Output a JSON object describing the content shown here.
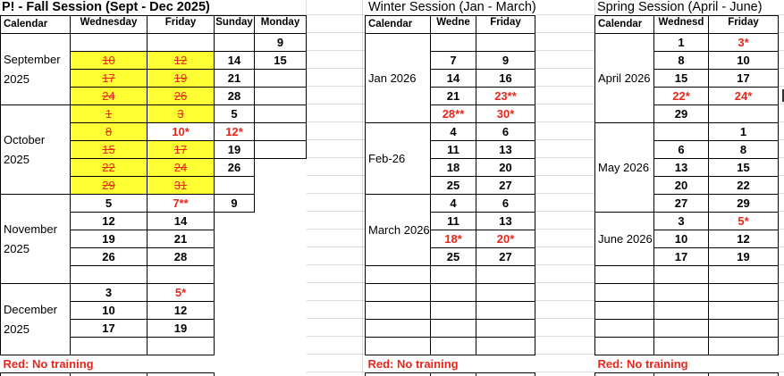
{
  "sections": [
    {
      "id": "fall",
      "title": "P! - Fall Session (Sept - Dec 2025)",
      "headers": [
        "Calendar",
        "Wednesday",
        "Friday",
        "Sunday",
        "Monday"
      ],
      "months": [
        {
          "label": "September 2025",
          "rows": 4
        },
        {
          "label": "October 2025",
          "rows": 5
        },
        {
          "label": "November 2025",
          "rows": 5
        },
        {
          "label": "December 2025",
          "rows": 4
        }
      ],
      "rows": [
        [
          "",
          "",
          "",
          "9"
        ],
        [
          {
            "v": "10",
            "s": "cancelled"
          },
          {
            "v": "12",
            "s": "cancelled"
          },
          "14",
          "15"
        ],
        [
          {
            "v": "17",
            "s": "cancelled"
          },
          {
            "v": "19",
            "s": "cancelled"
          },
          "21",
          ""
        ],
        [
          {
            "v": "24",
            "s": "cancelled"
          },
          {
            "v": "26",
            "s": "cancelled"
          },
          "28",
          ""
        ],
        [
          {
            "v": "1",
            "s": "cancelled"
          },
          {
            "v": "3",
            "s": "cancelled"
          },
          "5",
          ""
        ],
        [
          {
            "v": "8",
            "s": "cancelled"
          },
          {
            "v": "10*",
            "s": "red"
          },
          {
            "v": "12*",
            "s": "red"
          },
          ""
        ],
        [
          {
            "v": "15",
            "s": "cancelled"
          },
          {
            "v": "17",
            "s": "cancelled"
          },
          "19",
          ""
        ],
        [
          {
            "v": "22",
            "s": "cancelled"
          },
          {
            "v": "24",
            "s": "cancelled"
          },
          "26",
          ""
        ],
        [
          {
            "v": "29",
            "s": "cancelled"
          },
          {
            "v": "31",
            "s": "cancelled"
          },
          "",
          ""
        ],
        [
          "5",
          {
            "v": "7**",
            "s": "red"
          },
          "9",
          ""
        ],
        [
          "12",
          "14",
          "",
          ""
        ],
        [
          "19",
          "21",
          "",
          ""
        ],
        [
          "26",
          "28",
          "",
          ""
        ],
        [
          "",
          "",
          "",
          ""
        ],
        [
          "3",
          {
            "v": "5*",
            "s": "red"
          },
          "",
          ""
        ],
        [
          "10",
          "12",
          "",
          ""
        ],
        [
          "17",
          "19",
          "",
          ""
        ],
        [
          "",
          "",
          "",
          ""
        ]
      ],
      "note": "Red: No training"
    },
    {
      "id": "winter",
      "title": "Winter Session (Jan - March)",
      "headers": [
        "Calendar",
        "Wedne",
        "Friday"
      ],
      "months": [
        {
          "label": "Jan 2026",
          "rows": 5
        },
        {
          "label": "Feb-26",
          "rows": 4
        },
        {
          "label": "March 2026",
          "rows": 4
        },
        {
          "label": "",
          "rows": 1
        },
        {
          "label": "",
          "rows": 1
        },
        {
          "label": "",
          "rows": 1
        },
        {
          "label": "",
          "rows": 1
        },
        {
          "label": "",
          "rows": 1
        }
      ],
      "rows": [
        [
          "",
          ""
        ],
        [
          "7",
          "9"
        ],
        [
          "14",
          "16"
        ],
        [
          "21",
          {
            "v": "23**",
            "s": "red"
          }
        ],
        [
          {
            "v": "28**",
            "s": "red"
          },
          {
            "v": "30*",
            "s": "red"
          }
        ],
        [
          "4",
          "6"
        ],
        [
          "11",
          "13"
        ],
        [
          "18",
          "20"
        ],
        [
          "25",
          "27"
        ],
        [
          "4",
          "6"
        ],
        [
          "11",
          "13"
        ],
        [
          {
            "v": "18*",
            "s": "red"
          },
          {
            "v": "20*",
            "s": "red"
          }
        ],
        [
          "25",
          "27"
        ],
        [
          "",
          ""
        ],
        [
          "",
          ""
        ],
        [
          "",
          ""
        ],
        [
          "",
          ""
        ],
        [
          "",
          ""
        ]
      ],
      "note": "Red: No training"
    },
    {
      "id": "spring",
      "title": "Spring Session (April - June)",
      "headers": [
        "Calendar",
        "Wednesd",
        "Friday"
      ],
      "months": [
        {
          "label": "April 2026",
          "rows": 5
        },
        {
          "label": "May 2026",
          "rows": 5
        },
        {
          "label": "June 2026",
          "rows": 3
        },
        {
          "label": "",
          "rows": 1
        },
        {
          "label": "",
          "rows": 1
        },
        {
          "label": "",
          "rows": 1
        },
        {
          "label": "",
          "rows": 1
        },
        {
          "label": "",
          "rows": 1
        }
      ],
      "rows": [
        [
          "1",
          {
            "v": "3*",
            "s": "red"
          }
        ],
        [
          "8",
          "10"
        ],
        [
          "15",
          "17"
        ],
        [
          {
            "v": "22*",
            "s": "red"
          },
          {
            "v": "24*",
            "s": "red"
          }
        ],
        [
          "29",
          ""
        ],
        [
          "",
          "1"
        ],
        [
          "6",
          "8"
        ],
        [
          "13",
          "15"
        ],
        [
          "20",
          "22"
        ],
        [
          "27",
          "29"
        ],
        [
          "3",
          {
            "v": "5*",
            "s": "red"
          }
        ],
        [
          "10",
          "12"
        ],
        [
          "17",
          "19"
        ],
        [
          "",
          ""
        ],
        [
          "",
          ""
        ],
        [
          "",
          ""
        ],
        [
          "",
          ""
        ],
        [
          "",
          ""
        ]
      ],
      "note": "Red: No training"
    }
  ]
}
